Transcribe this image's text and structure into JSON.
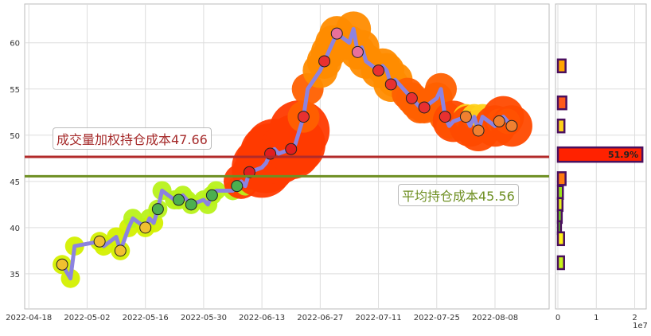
{
  "chart_data": [
    {
      "type": "line",
      "xlabel": "",
      "ylabel": "",
      "ylim": [
        31.2,
        64.2
      ],
      "xlim": [
        "2022-04-17",
        "2022-08-21"
      ],
      "grid": true,
      "x_ticks": [
        "2022-04-18",
        "2022-05-02",
        "2022-05-16",
        "2022-05-30",
        "2022-06-13",
        "2022-06-27",
        "2022-07-11",
        "2022-07-25",
        "2022-08-08"
      ],
      "y_ticks": [
        35,
        40,
        45,
        50,
        55,
        60
      ],
      "price_color": "#8c83e0",
      "points": [
        [
          "2022-04-26",
          36
        ],
        [
          "2022-04-28",
          34.5
        ],
        [
          "2022-04-29",
          38
        ],
        [
          "2022-05-05",
          38.5
        ],
        [
          "2022-05-06",
          38
        ],
        [
          "2022-05-09",
          39
        ],
        [
          "2022-05-10",
          37.5
        ],
        [
          "2022-05-12",
          40
        ],
        [
          "2022-05-13",
          41
        ],
        [
          "2022-05-16",
          40
        ],
        [
          "2022-05-17",
          41
        ],
        [
          "2022-05-18",
          40.5
        ],
        [
          "2022-05-19",
          42
        ],
        [
          "2022-05-20",
          44
        ],
        [
          "2022-05-23",
          43
        ],
        [
          "2022-05-24",
          43
        ],
        [
          "2022-05-25",
          43.5
        ],
        [
          "2022-05-26",
          43
        ],
        [
          "2022-05-27",
          42.5
        ],
        [
          "2022-05-30",
          43
        ],
        [
          "2022-05-31",
          42.5
        ],
        [
          "2022-06-01",
          43.5
        ],
        [
          "2022-06-02",
          44
        ],
        [
          "2022-06-06",
          44
        ],
        [
          "2022-06-07",
          44.5
        ],
        [
          "2022-06-08",
          45
        ],
        [
          "2022-06-09",
          44.5
        ],
        [
          "2022-06-10",
          46
        ],
        [
          "2022-06-13",
          46.5
        ],
        [
          "2022-06-14",
          47
        ],
        [
          "2022-06-15",
          48
        ],
        [
          "2022-06-16",
          48.5
        ],
        [
          "2022-06-17",
          48
        ],
        [
          "2022-06-20",
          48.5
        ],
        [
          "2022-06-21",
          49
        ],
        [
          "2022-06-22",
          50.5
        ],
        [
          "2022-06-23",
          52
        ],
        [
          "2022-06-24",
          55
        ],
        [
          "2022-06-27",
          57
        ],
        [
          "2022-06-28",
          58
        ],
        [
          "2022-06-29",
          59
        ],
        [
          "2022-06-30",
          60
        ],
        [
          "2022-07-01",
          61
        ],
        [
          "2022-07-04",
          60
        ],
        [
          "2022-07-05",
          61.5
        ],
        [
          "2022-07-06",
          59
        ],
        [
          "2022-07-07",
          59.5
        ],
        [
          "2022-07-08",
          58
        ],
        [
          "2022-07-11",
          57
        ],
        [
          "2022-07-12",
          57.5
        ],
        [
          "2022-07-13",
          57
        ],
        [
          "2022-07-14",
          55.5
        ],
        [
          "2022-07-15",
          56
        ],
        [
          "2022-07-18",
          54.5
        ],
        [
          "2022-07-19",
          54
        ],
        [
          "2022-07-20",
          53.5
        ],
        [
          "2022-07-21",
          53
        ],
        [
          "2022-07-22",
          53
        ],
        [
          "2022-07-25",
          54
        ],
        [
          "2022-07-26",
          55
        ],
        [
          "2022-07-27",
          52
        ],
        [
          "2022-07-28",
          51
        ],
        [
          "2022-07-29",
          51.5
        ],
        [
          "2022-08-01",
          52
        ],
        [
          "2022-08-02",
          51
        ],
        [
          "2022-08-03",
          52
        ],
        [
          "2022-08-04",
          50.5
        ],
        [
          "2022-08-05",
          52
        ],
        [
          "2022-08-08",
          51
        ],
        [
          "2022-08-09",
          51.5
        ],
        [
          "2022-08-10",
          52
        ],
        [
          "2022-08-11",
          51.5
        ],
        [
          "2022-08-12",
          51
        ]
      ],
      "hlines": [
        {
          "label": "成交量加权持仓成本47.66",
          "value": 47.66,
          "color": "#b22a2a"
        },
        {
          "label": "平均持仓成本45.56",
          "value": 45.56,
          "color": "#6e8f22"
        }
      ]
    },
    {
      "type": "bar",
      "orientation": "horizontal",
      "xlim": [
        0,
        23000000.0
      ],
      "x_ticks": [
        "0",
        "1",
        "2"
      ],
      "x_offset_label": "1e7",
      "bar_border": "#4a0f5e",
      "bars": [
        {
          "price": 57.5,
          "value": 2000000,
          "color": "#ffa500"
        },
        {
          "price": 53.5,
          "value": 2200000,
          "color": "#ff5a1a"
        },
        {
          "price": 51,
          "value": 1700000,
          "color": "#ffd21a"
        },
        {
          "price": 47.9,
          "value": 22000000,
          "color": "#ff2200",
          "label": "51.9%"
        },
        {
          "price": 45.3,
          "value": 2000000,
          "color": "#ff7a10"
        },
        {
          "price": 43.8,
          "value": 1300000,
          "color": "#9be31a"
        },
        {
          "price": 42.5,
          "value": 1200000,
          "color": "#e6f21a"
        },
        {
          "price": 41.2,
          "value": 1000000,
          "color": "#7ad61a"
        },
        {
          "price": 40,
          "value": 800000,
          "color": "#5cc81a"
        },
        {
          "price": 38.8,
          "value": 1600000,
          "color": "#fff21a"
        },
        {
          "price": 36.2,
          "value": 1600000,
          "color": "#c8f21a"
        }
      ]
    }
  ]
}
